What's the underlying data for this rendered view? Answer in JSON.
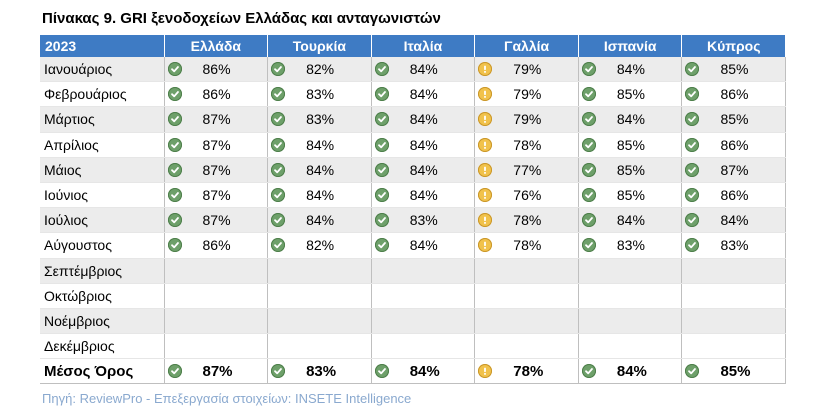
{
  "title": "Πίνακας 9. GRI ξενοδοχείων Ελλάδας και ανταγωνιστών",
  "header": {
    "year": "2023",
    "countries": [
      "Ελλάδα",
      "Τουρκία",
      "Ιταλία",
      "Γαλλία",
      "Ισπανία",
      "Κύπρος"
    ]
  },
  "status_icons": [
    "check-icon",
    "check-icon",
    "check-icon",
    "warning-icon",
    "check-icon",
    "check-icon"
  ],
  "rows": [
    {
      "month": "Ιανουάριος",
      "values": [
        "86%",
        "82%",
        "84%",
        "79%",
        "84%",
        "85%"
      ]
    },
    {
      "month": "Φεβρουάριος",
      "values": [
        "86%",
        "83%",
        "84%",
        "79%",
        "85%",
        "86%"
      ]
    },
    {
      "month": "Μάρτιος",
      "values": [
        "87%",
        "83%",
        "84%",
        "79%",
        "84%",
        "85%"
      ]
    },
    {
      "month": "Απρίλιος",
      "values": [
        "87%",
        "84%",
        "84%",
        "78%",
        "85%",
        "86%"
      ]
    },
    {
      "month": "Μάιος",
      "values": [
        "87%",
        "84%",
        "84%",
        "77%",
        "85%",
        "87%"
      ]
    },
    {
      "month": "Ιούνιος",
      "values": [
        "87%",
        "84%",
        "84%",
        "76%",
        "85%",
        "86%"
      ]
    },
    {
      "month": "Ιούλιος",
      "values": [
        "87%",
        "84%",
        "83%",
        "78%",
        "84%",
        "84%"
      ]
    },
    {
      "month": "Αύγουστος",
      "values": [
        "86%",
        "82%",
        "84%",
        "78%",
        "83%",
        "83%"
      ]
    },
    {
      "month": "Σεπτέμβριος",
      "values": []
    },
    {
      "month": "Οκτώβριος",
      "values": []
    },
    {
      "month": "Νοέμβριος",
      "values": []
    },
    {
      "month": "Δεκέμβριος",
      "values": []
    }
  ],
  "average": {
    "label": "Μέσος Όρος",
    "values": [
      "87%",
      "83%",
      "84%",
      "78%",
      "84%",
      "85%"
    ]
  },
  "source": "Πηγή:  ReviewPro - Επεξεργασία στοιχείων: INSETE Intelligence",
  "colors": {
    "header_bg": "#3e7bc4",
    "ok": "#6ea06a",
    "warn": "#f1c24b",
    "source_text": "#8aa9cf"
  }
}
